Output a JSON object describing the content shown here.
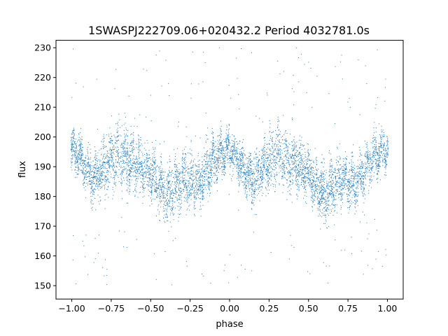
{
  "chart_data": {
    "type": "scatter",
    "title": "1SWASPJ222709.06+020432.2 Period 4032781.0s",
    "xlabel": "phase",
    "ylabel": "flux",
    "xlim": [
      -1.1,
      1.1
    ],
    "ylim": [
      145.5,
      232.5
    ],
    "x_ticks": [
      -1.0,
      -0.75,
      -0.5,
      -0.25,
      0.0,
      0.25,
      0.5,
      0.75,
      1.0
    ],
    "x_tick_labels": [
      "−1.00",
      "−0.75",
      "−0.50",
      "−0.25",
      "0.00",
      "0.25",
      "0.50",
      "0.75",
      "1.00"
    ],
    "y_ticks": [
      150,
      160,
      170,
      180,
      190,
      200,
      210,
      220,
      230
    ],
    "y_tick_labels": [
      "150",
      "160",
      "170",
      "180",
      "190",
      "200",
      "210",
      "220",
      "230"
    ],
    "grid": false,
    "legend": "none",
    "marker_color": "#1f77b4",
    "light_curve_profile": {
      "phase": [
        -1.0,
        -0.95,
        -0.9,
        -0.85,
        -0.8,
        -0.75,
        -0.7,
        -0.65,
        -0.6,
        -0.55,
        -0.5,
        -0.45,
        -0.4,
        -0.35,
        -0.3,
        -0.25,
        -0.2,
        -0.15,
        -0.1,
        -0.05,
        0.0,
        0.05,
        0.1,
        0.15,
        0.2,
        0.25,
        0.3,
        0.35,
        0.4,
        0.45,
        0.5,
        0.55,
        0.6,
        0.65,
        0.7,
        0.75,
        0.8,
        0.85,
        0.9,
        0.95,
        1.0
      ],
      "flux_median": [
        196,
        193,
        188,
        186,
        189,
        192,
        194,
        192,
        191,
        190,
        188,
        184,
        180,
        183,
        186,
        185,
        184,
        188,
        192,
        194,
        196,
        193,
        188,
        186,
        189,
        192,
        194,
        192,
        191,
        190,
        188,
        184,
        180,
        183,
        186,
        185,
        184,
        188,
        192,
        194,
        196
      ],
      "flux_spread": [
        6,
        7,
        8,
        9,
        9,
        10,
        11,
        10,
        9,
        8,
        8,
        9,
        10,
        10,
        9,
        9,
        9,
        9,
        8,
        7,
        6,
        7,
        8,
        9,
        9,
        10,
        11,
        10,
        9,
        8,
        8,
        9,
        10,
        10,
        9,
        9,
        9,
        9,
        8,
        7,
        6
      ],
      "outlier_range": [
        150,
        230
      ]
    }
  }
}
